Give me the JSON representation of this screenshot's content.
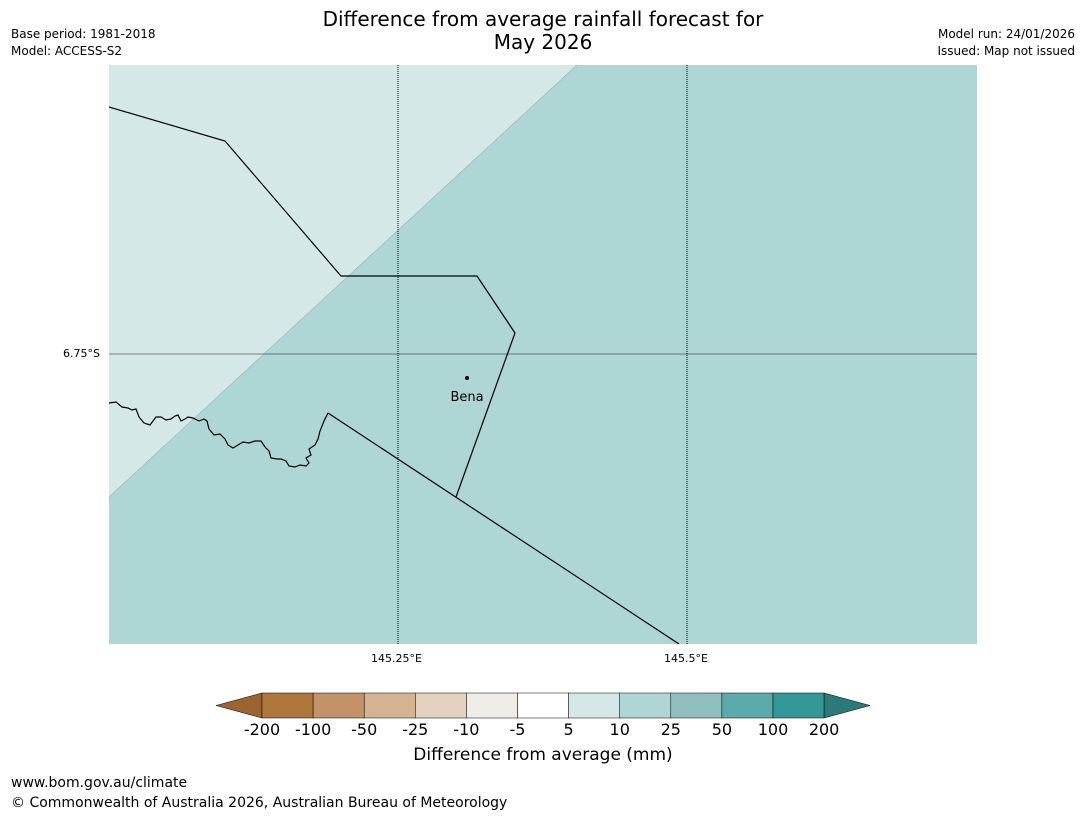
{
  "title": {
    "line1": "Difference from average rainfall forecast for",
    "line2": "May 2026"
  },
  "meta_left": {
    "base_period": "Base period: 1981-2018",
    "model": "Model: ACCESS-S2"
  },
  "meta_right": {
    "model_run": "Model run: 24/01/2026",
    "issued": "Issued: Map not issued"
  },
  "map": {
    "place_name": "Bena",
    "lat_label": "6.75°S",
    "lon_labels": [
      "145.25°E",
      "145.5°E"
    ],
    "colors": {
      "light_region": "#d5e8e8",
      "main_region": "#aed6d5",
      "border": "#000000",
      "gridline": "#000000"
    },
    "regions": [
      {
        "category": "5 to 10",
        "color": "#d5e8e8"
      },
      {
        "category": "10 to 25",
        "color": "#aed6d5"
      }
    ]
  },
  "colorbar": {
    "title": "Difference from average (mm)",
    "labels": [
      "-200",
      "-100",
      "-50",
      "-25",
      "-10",
      "-5",
      "5",
      "10",
      "25",
      "50",
      "100",
      "200"
    ],
    "colors": [
      "#9c6431",
      "#b0773d",
      "#c39268",
      "#d4b292",
      "#e5d1c0",
      "#f0ece8",
      "#ffffff",
      "#d5e8e8",
      "#aed6d5",
      "#91bfbe",
      "#5babab",
      "#339996",
      "#2b7a78"
    ]
  },
  "footer": {
    "url": "www.bom.gov.au/climate",
    "copyright": "© Commonwealth of Australia 2026, Australian Bureau of Meteorology"
  }
}
